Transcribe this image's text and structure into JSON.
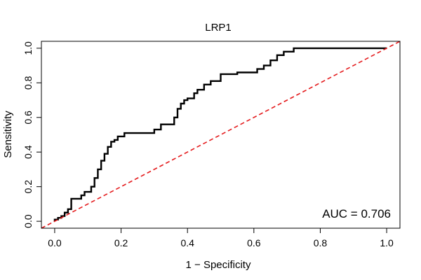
{
  "chart_data": {
    "type": "line",
    "title": "LRP1",
    "xlabel": "1 − Specificity",
    "ylabel": "Sensitivity",
    "xlim": [
      -0.04,
      1.04
    ],
    "ylim": [
      -0.04,
      1.04
    ],
    "xticks": [
      0.0,
      0.2,
      0.4,
      0.6,
      0.8,
      1.0
    ],
    "yticks": [
      0.0,
      0.2,
      0.4,
      0.6,
      0.8,
      1.0
    ],
    "xtick_labels": [
      "0.0",
      "0.2",
      "0.4",
      "0.6",
      "0.8",
      "1.0"
    ],
    "ytick_labels": [
      "0.0",
      "0.2",
      "0.4",
      "0.6",
      "0.8",
      "1.0"
    ],
    "grid": false,
    "annotation": "AUC = 0.706",
    "series": [
      {
        "style": "solid",
        "color": "#000000",
        "x": [
          0.0,
          0.0,
          0.01,
          0.01,
          0.02,
          0.02,
          0.03,
          0.03,
          0.04,
          0.04,
          0.05,
          0.05,
          0.08,
          0.08,
          0.09,
          0.09,
          0.11,
          0.11,
          0.12,
          0.12,
          0.13,
          0.13,
          0.14,
          0.14,
          0.15,
          0.15,
          0.16,
          0.16,
          0.17,
          0.17,
          0.18,
          0.18,
          0.19,
          0.19,
          0.21,
          0.21,
          0.23,
          0.23,
          0.3,
          0.3,
          0.32,
          0.32,
          0.36,
          0.36,
          0.37,
          0.37,
          0.38,
          0.38,
          0.39,
          0.39,
          0.4,
          0.4,
          0.42,
          0.42,
          0.43,
          0.43,
          0.45,
          0.45,
          0.47,
          0.47,
          0.5,
          0.5,
          0.55,
          0.55,
          0.61,
          0.61,
          0.63,
          0.63,
          0.65,
          0.65,
          0.67,
          0.67,
          0.69,
          0.69,
          0.72,
          0.72,
          1.0
        ],
        "y": [
          0.0,
          0.01,
          0.01,
          0.02,
          0.02,
          0.03,
          0.03,
          0.05,
          0.05,
          0.07,
          0.07,
          0.13,
          0.13,
          0.15,
          0.15,
          0.17,
          0.17,
          0.2,
          0.2,
          0.25,
          0.25,
          0.3,
          0.3,
          0.35,
          0.35,
          0.39,
          0.39,
          0.43,
          0.43,
          0.46,
          0.46,
          0.47,
          0.47,
          0.49,
          0.49,
          0.51,
          0.51,
          0.51,
          0.51,
          0.53,
          0.53,
          0.56,
          0.56,
          0.6,
          0.6,
          0.65,
          0.65,
          0.68,
          0.68,
          0.7,
          0.7,
          0.71,
          0.71,
          0.74,
          0.74,
          0.76,
          0.76,
          0.79,
          0.79,
          0.81,
          0.81,
          0.85,
          0.85,
          0.86,
          0.86,
          0.88,
          0.88,
          0.9,
          0.9,
          0.93,
          0.93,
          0.96,
          0.96,
          0.98,
          0.98,
          1.0,
          1.0
        ]
      },
      {
        "style": "dashed",
        "color": "#e41a1c",
        "x": [
          -0.04,
          1.04
        ],
        "y": [
          -0.04,
          1.04
        ]
      }
    ]
  }
}
